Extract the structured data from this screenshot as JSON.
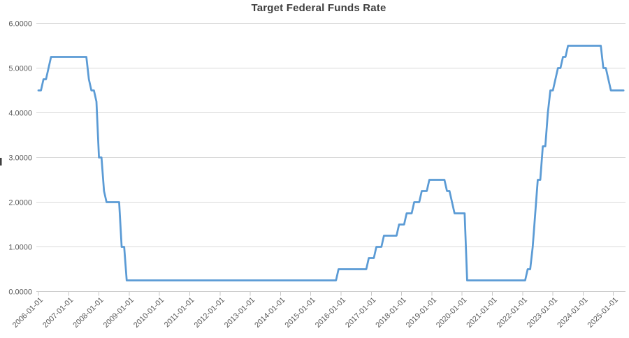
{
  "chart_data": {
    "type": "line",
    "title": "Target Federal Funds Rate",
    "xlabel": "",
    "ylabel": "",
    "legend": "none",
    "grid": "horizontal",
    "ylim": [
      0,
      6
    ],
    "x_start": "2006-01",
    "x_frequency": "monthly",
    "y_tick_labels": [
      "0.0000",
      "1.0000",
      "2.0000",
      "3.0000",
      "4.0000",
      "5.0000",
      "6.0000"
    ],
    "x_tick_labels": [
      "2006-01-01",
      "2007-01-01",
      "2008-01-01",
      "2009-01-01",
      "2010-01-01",
      "2011-01-01",
      "2012-01-01",
      "2013-01-01",
      "2014-01-01",
      "2015-01-01",
      "2016-01-01",
      "2017-01-01",
      "2018-01-01",
      "2019-01-01",
      "2020-01-01",
      "2021-01-01",
      "2022-01-01",
      "2023-01-01",
      "2024-01-01",
      "2025-01-01"
    ],
    "series": [
      {
        "name": "Target Federal Funds Rate",
        "values": [
          4.5,
          4.5,
          4.75,
          4.75,
          5.0,
          5.25,
          5.25,
          5.25,
          5.25,
          5.25,
          5.25,
          5.25,
          5.25,
          5.25,
          5.25,
          5.25,
          5.25,
          5.25,
          5.25,
          5.25,
          4.75,
          4.5,
          4.5,
          4.25,
          3.0,
          3.0,
          2.25,
          2.0,
          2.0,
          2.0,
          2.0,
          2.0,
          2.0,
          1.0,
          1.0,
          0.25,
          0.25,
          0.25,
          0.25,
          0.25,
          0.25,
          0.25,
          0.25,
          0.25,
          0.25,
          0.25,
          0.25,
          0.25,
          0.25,
          0.25,
          0.25,
          0.25,
          0.25,
          0.25,
          0.25,
          0.25,
          0.25,
          0.25,
          0.25,
          0.25,
          0.25,
          0.25,
          0.25,
          0.25,
          0.25,
          0.25,
          0.25,
          0.25,
          0.25,
          0.25,
          0.25,
          0.25,
          0.25,
          0.25,
          0.25,
          0.25,
          0.25,
          0.25,
          0.25,
          0.25,
          0.25,
          0.25,
          0.25,
          0.25,
          0.25,
          0.25,
          0.25,
          0.25,
          0.25,
          0.25,
          0.25,
          0.25,
          0.25,
          0.25,
          0.25,
          0.25,
          0.25,
          0.25,
          0.25,
          0.25,
          0.25,
          0.25,
          0.25,
          0.25,
          0.25,
          0.25,
          0.25,
          0.25,
          0.25,
          0.25,
          0.25,
          0.25,
          0.25,
          0.25,
          0.25,
          0.25,
          0.25,
          0.25,
          0.25,
          0.5,
          0.5,
          0.5,
          0.5,
          0.5,
          0.5,
          0.5,
          0.5,
          0.5,
          0.5,
          0.5,
          0.5,
          0.75,
          0.75,
          0.75,
          1.0,
          1.0,
          1.0,
          1.25,
          1.25,
          1.25,
          1.25,
          1.25,
          1.25,
          1.5,
          1.5,
          1.5,
          1.75,
          1.75,
          1.75,
          2.0,
          2.0,
          2.0,
          2.25,
          2.25,
          2.25,
          2.5,
          2.5,
          2.5,
          2.5,
          2.5,
          2.5,
          2.5,
          2.25,
          2.25,
          2.0,
          1.75,
          1.75,
          1.75,
          1.75,
          1.75,
          0.25,
          0.25,
          0.25,
          0.25,
          0.25,
          0.25,
          0.25,
          0.25,
          0.25,
          0.25,
          0.25,
          0.25,
          0.25,
          0.25,
          0.25,
          0.25,
          0.25,
          0.25,
          0.25,
          0.25,
          0.25,
          0.25,
          0.25,
          0.25,
          0.5,
          0.5,
          1.0,
          1.75,
          2.5,
          2.5,
          3.25,
          3.25,
          4.0,
          4.5,
          4.5,
          4.75,
          5.0,
          5.0,
          5.25,
          5.25,
          5.5,
          5.5,
          5.5,
          5.5,
          5.5,
          5.5,
          5.5,
          5.5,
          5.5,
          5.5,
          5.5,
          5.5,
          5.5,
          5.5,
          5.0,
          5.0,
          4.75,
          4.5,
          4.5,
          4.5,
          4.5,
          4.5,
          4.5
        ]
      }
    ],
    "colors": {
      "line": "#5b9bd5",
      "gridline": "#d9d9d9",
      "axis_line": "#c9c9c9",
      "tick_label": "#595959",
      "title": "#3f3f3f",
      "background": "#ffffff"
    }
  }
}
